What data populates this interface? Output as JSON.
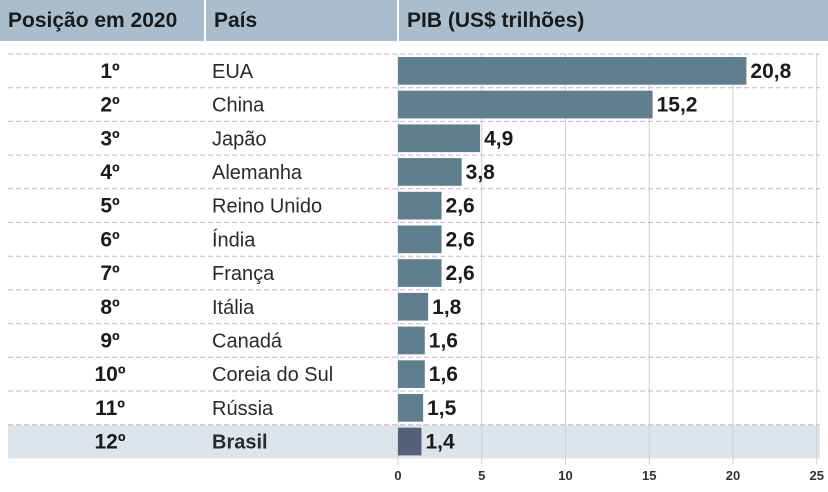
{
  "header": {
    "rank": "Posição em 2020",
    "country": "País",
    "gdp": "PIB (US$ trilhões)"
  },
  "chart_data": {
    "type": "bar",
    "orientation": "horizontal",
    "title": "PIB (US$ trilhões)",
    "xlim": [
      0,
      25
    ],
    "xticks": [
      0,
      5,
      10,
      15,
      20,
      25
    ],
    "grid": true,
    "ranks": [
      "1º",
      "2º",
      "3º",
      "4º",
      "5º",
      "6º",
      "7º",
      "8º",
      "9º",
      "10º",
      "11º",
      "12º"
    ],
    "categories": [
      "EUA",
      "China",
      "Japão",
      "Alemanha",
      "Reino Unido",
      "Índia",
      "França",
      "Itália",
      "Canadá",
      "Coreia do Sul",
      "Rússia",
      "Brasil"
    ],
    "values": [
      20.8,
      15.2,
      4.9,
      3.8,
      2.6,
      2.6,
      2.6,
      1.8,
      1.6,
      1.6,
      1.5,
      1.4
    ],
    "value_labels": [
      "20,8",
      "15,2",
      "4,9",
      "3,8",
      "2,6",
      "2,6",
      "2,6",
      "1,8",
      "1,6",
      "1,6",
      "1,5",
      "1,4"
    ],
    "highlight": "Brasil",
    "colors": {
      "bar": "#5f7f8f",
      "bar_highlight": "#536279",
      "header_bg": "#a9bdcc",
      "highlight_row_bg": "#dde5ec",
      "separator": "#d6aecb"
    }
  }
}
